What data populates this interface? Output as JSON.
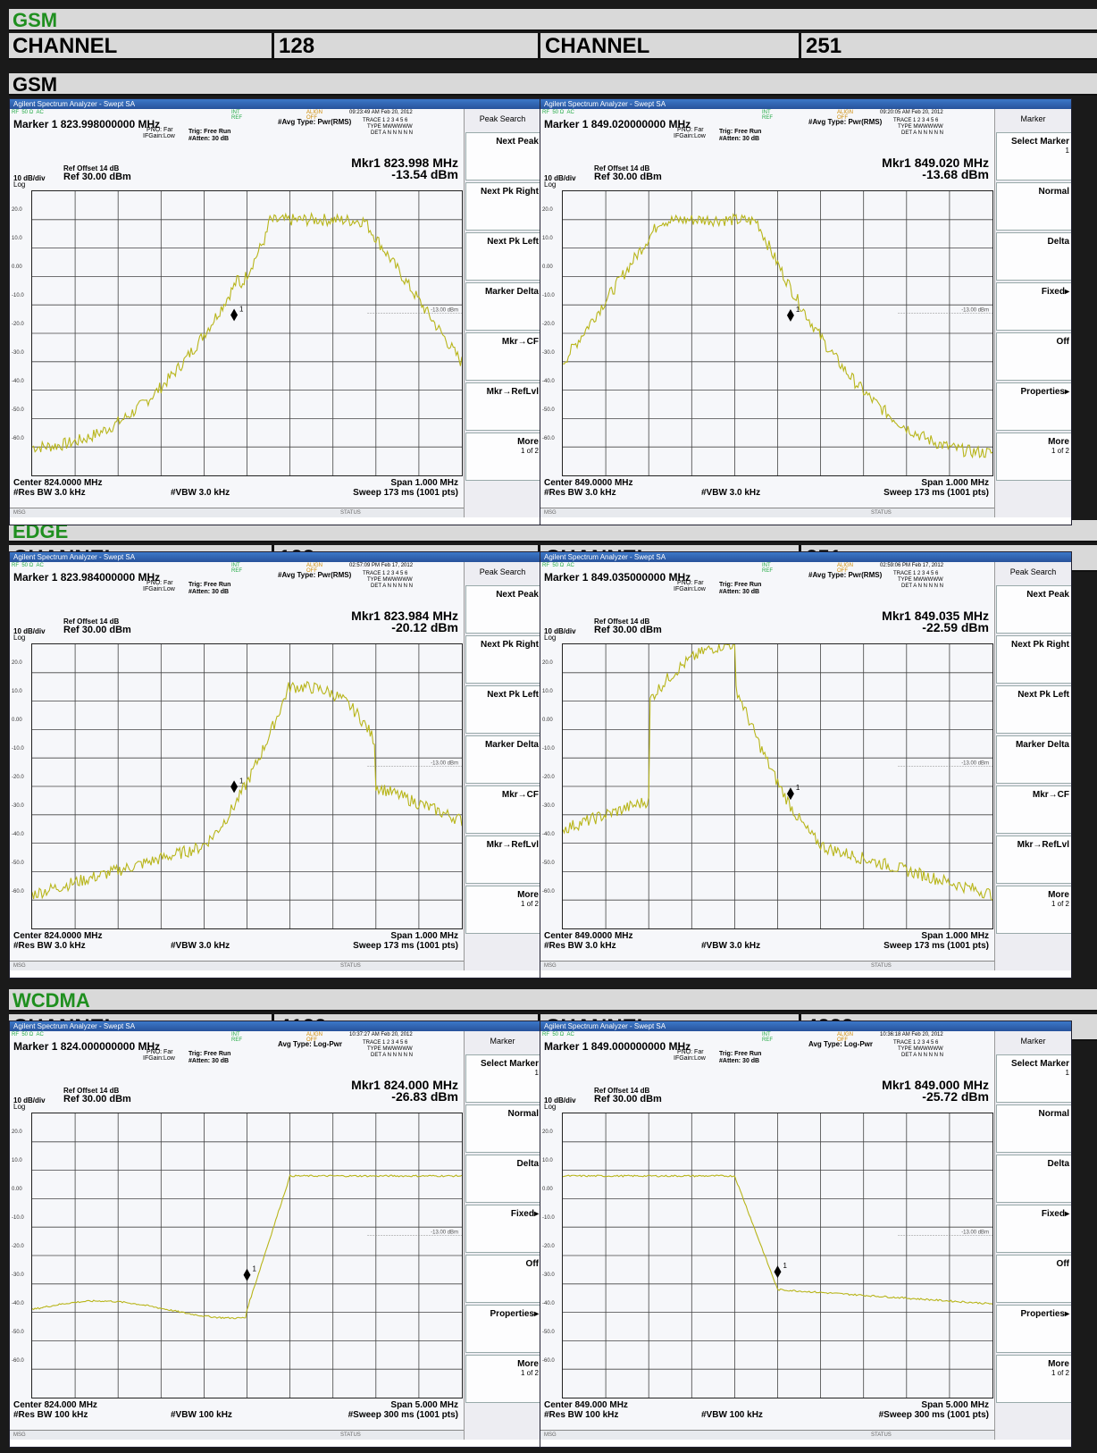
{
  "window_title": "Agilent Spectrum Analyzer - Swept SA",
  "info_bar": {
    "rf": "RF",
    "impedance": "50 Ω",
    "coupling": "AC",
    "ref": "INT REF",
    "align": "ALIGN OFF"
  },
  "common": {
    "trig": "Trig: Free Run",
    "atten": "#Atten: 30 dB",
    "pno": "PNO: Far",
    "ifgain": "IFGain:Low",
    "trace": "TRACE 1 2 3 4 5 6",
    "type": "TYPE MWWWWW",
    "det": "DET A N N N N N",
    "ref_offset": "Ref Offset 14 dB",
    "scale": "10 dB/div",
    "ref_level": "Ref 30.00 dBm",
    "log": "Log",
    "msg": "MSG",
    "status": "STATUS",
    "limit_label": "-13.00 dBm",
    "y_ticks": [
      "20.0",
      "10.0",
      "0.00",
      "-10.0",
      "-20.0",
      "-30.0",
      "-40.0",
      "-50.0",
      "-60.0"
    ]
  },
  "sections": [
    {
      "title": "GSM",
      "channels": [
        "128",
        "251"
      ],
      "channel_label": "CHANNEL"
    },
    {
      "title": "EDGE",
      "channels": [
        "128",
        "251"
      ],
      "channel_label": "CHANNEL"
    },
    {
      "title": "WCDMA",
      "channels": [
        "4132",
        "4233"
      ],
      "channel_label": "CHANNEL"
    }
  ],
  "gsm_subheader": "GSM",
  "captures": [
    {
      "timestamp": "09:23:49 AM Feb 20, 2012",
      "avg": "#Avg Type: Pwr(RMS)",
      "marker": "Marker 1  823.998000000 MHz",
      "mkr_freq": "Mkr1 823.998 MHz",
      "mkr_amp": "-13.54 dBm",
      "center": "Center 824.0000 MHz",
      "res_bw": "#Res BW 3.0 kHz",
      "vbw": "#VBW 3.0 kHz",
      "span": "Span 1.000 MHz",
      "sweep": "Sweep  173 ms (1001 pts)",
      "softkeys": [
        {
          "label": "Peak Search",
          "title": true
        },
        {
          "label": "Next Peak"
        },
        {
          "label": "Next Pk Right"
        },
        {
          "label": "Next Pk Left"
        },
        {
          "label": "Marker Delta"
        },
        {
          "label": "Mkr→CF"
        },
        {
          "label": "Mkr→RefLvl"
        },
        {
          "label": "More",
          "sub": "1 of 2"
        }
      ]
    },
    {
      "timestamp": "09:20:05 AM Feb 20, 2012",
      "avg": "#Avg Type: Pwr(RMS)",
      "marker": "Marker 1  849.020000000 MHz",
      "mkr_freq": "Mkr1 849.020 MHz",
      "mkr_amp": "-13.68 dBm",
      "center": "Center 849.0000 MHz",
      "res_bw": "#Res BW 3.0 kHz",
      "vbw": "#VBW 3.0 kHz",
      "span": "Span 1.000 MHz",
      "sweep": "Sweep  173 ms (1001 pts)",
      "softkeys": [
        {
          "label": "Marker",
          "title": true
        },
        {
          "label": "Select Marker",
          "sub": "1"
        },
        {
          "label": "Normal"
        },
        {
          "label": "Delta"
        },
        {
          "label": "Fixed▸"
        },
        {
          "label": "Off"
        },
        {
          "label": "Properties▸"
        },
        {
          "label": "More",
          "sub": "1 of 2"
        }
      ]
    },
    {
      "timestamp": "02:57:09 PM Feb 17, 2012",
      "avg": "#Avg Type: Pwr(RMS)",
      "marker": "Marker 1  823.984000000 MHz",
      "mkr_freq": "Mkr1 823.984 MHz",
      "mkr_amp": "-20.12 dBm",
      "center": "Center 824.0000 MHz",
      "res_bw": "#Res BW 3.0 kHz",
      "vbw": "#VBW 3.0 kHz",
      "span": "Span 1.000 MHz",
      "sweep": "Sweep  173 ms (1001 pts)",
      "softkeys": [
        {
          "label": "Peak Search",
          "title": true
        },
        {
          "label": "Next Peak"
        },
        {
          "label": "Next Pk Right"
        },
        {
          "label": "Next Pk Left"
        },
        {
          "label": "Marker Delta"
        },
        {
          "label": "Mkr→CF"
        },
        {
          "label": "Mkr→RefLvl"
        },
        {
          "label": "More",
          "sub": "1 of 2"
        }
      ]
    },
    {
      "timestamp": "02:59:06 PM Feb 17, 2012",
      "avg": "#Avg Type: Pwr(RMS)",
      "marker": "Marker 1  849.035000000 MHz",
      "mkr_freq": "Mkr1 849.035 MHz",
      "mkr_amp": "-22.59 dBm",
      "center": "Center 849.0000 MHz",
      "res_bw": "#Res BW 3.0 kHz",
      "vbw": "#VBW 3.0 kHz",
      "span": "Span 1.000 MHz",
      "sweep": "Sweep  173 ms (1001 pts)",
      "softkeys": [
        {
          "label": "Peak Search",
          "title": true
        },
        {
          "label": "Next Peak"
        },
        {
          "label": "Next Pk Right"
        },
        {
          "label": "Next Pk Left"
        },
        {
          "label": "Marker Delta"
        },
        {
          "label": "Mkr→CF"
        },
        {
          "label": "Mkr→RefLvl"
        },
        {
          "label": "More",
          "sub": "1 of 2"
        }
      ]
    },
    {
      "timestamp": "10:37:27 AM Feb 20, 2012",
      "avg": "Avg Type: Log-Pwr",
      "marker": "Marker 1  824.000000000 MHz",
      "mkr_freq": "Mkr1 824.000 MHz",
      "mkr_amp": "-26.83 dBm",
      "center": "Center 824.000 MHz",
      "res_bw": "#Res BW 100 kHz",
      "vbw": "#VBW 100 kHz",
      "span": "Span 5.000 MHz",
      "sweep": "#Sweep  300 ms (1001 pts)",
      "softkeys": [
        {
          "label": "Marker",
          "title": true
        },
        {
          "label": "Select Marker",
          "sub": "1"
        },
        {
          "label": "Normal"
        },
        {
          "label": "Delta"
        },
        {
          "label": "Fixed▸"
        },
        {
          "label": "Off"
        },
        {
          "label": "Properties▸"
        },
        {
          "label": "More",
          "sub": "1 of 2"
        }
      ]
    },
    {
      "timestamp": "10:36:18 AM Feb 20, 2012",
      "avg": "Avg Type: Log-Pwr",
      "marker": "Marker 1  849.000000000 MHz",
      "mkr_freq": "Mkr1 849.000 MHz",
      "mkr_amp": "-25.72 dBm",
      "center": "Center 849.000 MHz",
      "res_bw": "#Res BW 100 kHz",
      "vbw": "#VBW 100 kHz",
      "span": "Span 5.000 MHz",
      "sweep": "#Sweep  300 ms (1001 pts)",
      "softkeys": [
        {
          "label": "Marker",
          "title": true
        },
        {
          "label": "Select Marker",
          "sub": "1"
        },
        {
          "label": "Normal"
        },
        {
          "label": "Delta"
        },
        {
          "label": "Fixed▸"
        },
        {
          "label": "Off"
        },
        {
          "label": "Properties▸"
        },
        {
          "label": "More",
          "sub": "1 of 2"
        }
      ]
    }
  ],
  "colors": {
    "trace": "#b8b51a",
    "grid": "#444444",
    "section_title": "#1f8f1f"
  }
}
